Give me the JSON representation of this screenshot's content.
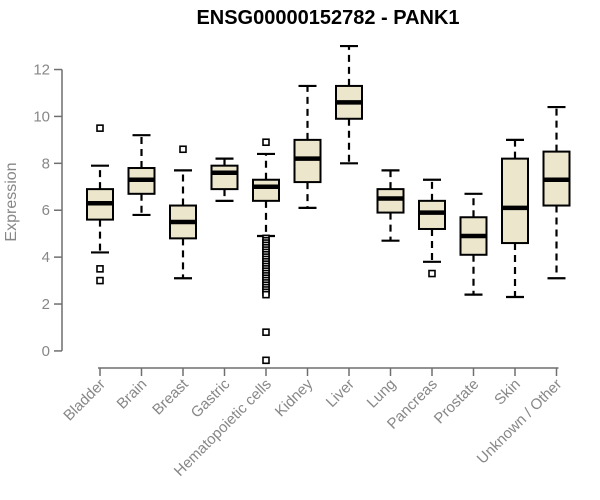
{
  "chart_data": {
    "type": "boxplot",
    "title": "ENSG00000152782 - PANK1",
    "xlabel": "",
    "ylabel": "Expression",
    "ylim": [
      -0.6,
      13.6
    ],
    "yticks": [
      0,
      2,
      4,
      6,
      8,
      10,
      12
    ],
    "grid": false,
    "legend": false,
    "categories": [
      "Bladder",
      "Brain",
      "Breast",
      "Gastric",
      "Hematopoietic cells",
      "Kidney",
      "Liver",
      "Lung",
      "Pancreas",
      "Prostate",
      "Skin",
      "Unknown / Other"
    ],
    "series": [
      {
        "name": "Bladder",
        "low": 4.2,
        "q1": 5.6,
        "median": 6.3,
        "q3": 6.9,
        "high": 7.9,
        "outliers": [
          9.5,
          3.5,
          3.0
        ]
      },
      {
        "name": "Brain",
        "low": 5.8,
        "q1": 6.7,
        "median": 7.3,
        "q3": 7.8,
        "high": 9.2,
        "outliers": []
      },
      {
        "name": "Breast",
        "low": 3.1,
        "q1": 4.8,
        "median": 5.5,
        "q3": 6.2,
        "high": 7.7,
        "outliers": [
          8.6
        ]
      },
      {
        "name": "Gastric",
        "low": 6.4,
        "q1": 6.9,
        "median": 7.6,
        "q3": 7.9,
        "high": 8.2,
        "outliers": []
      },
      {
        "name": "Hematopoietic cells",
        "low": 4.9,
        "q1": 6.4,
        "median": 7.0,
        "q3": 7.3,
        "high": 8.4,
        "outliers": [
          8.9,
          4.8,
          4.7,
          4.6,
          4.5,
          4.4,
          4.3,
          4.2,
          4.1,
          4.0,
          3.9,
          3.8,
          3.7,
          3.6,
          3.5,
          3.4,
          3.3,
          3.2,
          3.1,
          3.0,
          2.9,
          2.8,
          2.7,
          2.6,
          2.5,
          2.4,
          0.8,
          -0.4
        ]
      },
      {
        "name": "Kidney",
        "low": 6.1,
        "q1": 7.2,
        "median": 8.2,
        "q3": 9.0,
        "high": 11.3,
        "outliers": []
      },
      {
        "name": "Liver",
        "low": 8.0,
        "q1": 9.9,
        "median": 10.6,
        "q3": 11.3,
        "high": 13.0,
        "outliers": []
      },
      {
        "name": "Lung",
        "low": 4.7,
        "q1": 5.9,
        "median": 6.5,
        "q3": 6.9,
        "high": 7.7,
        "outliers": []
      },
      {
        "name": "Pancreas",
        "low": 3.8,
        "q1": 5.2,
        "median": 5.9,
        "q3": 6.4,
        "high": 7.3,
        "outliers": [
          3.3
        ]
      },
      {
        "name": "Prostate",
        "low": 2.4,
        "q1": 4.1,
        "median": 4.9,
        "q3": 5.7,
        "high": 6.7,
        "outliers": []
      },
      {
        "name": "Skin",
        "low": 2.3,
        "q1": 4.6,
        "median": 6.1,
        "q3": 8.2,
        "high": 9.0,
        "outliers": []
      },
      {
        "name": "Unknown / Other",
        "low": 3.1,
        "q1": 6.2,
        "median": 7.3,
        "q3": 8.5,
        "high": 10.4,
        "outliers": []
      }
    ]
  },
  "colors": {
    "box_fill": "#ece6cd",
    "box_border": "#000000",
    "median": "#000000",
    "whisker": "#000000",
    "outlier_fill": "#ffffff",
    "axis": "#6f6f6f",
    "tick_label": "#878787",
    "title": "#000000",
    "background": "#ffffff"
  }
}
